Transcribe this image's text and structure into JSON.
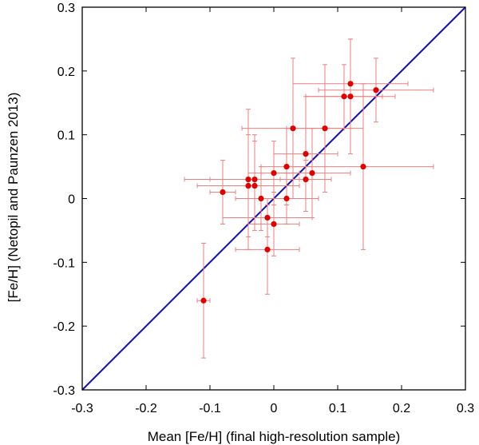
{
  "chart_data": {
    "type": "scatter",
    "xlabel": "Mean [Fe/H] (final high-resolution sample)",
    "ylabel": "[Fe/H] (Netopil and Paunzen 2013)",
    "xlim": [
      -0.3,
      0.3
    ],
    "ylim": [
      -0.3,
      0.3
    ],
    "xticks": [
      -0.3,
      -0.2,
      -0.1,
      0,
      0.1,
      0.2,
      0.3
    ],
    "yticks": [
      -0.3,
      -0.2,
      -0.1,
      0,
      0.1,
      0.2,
      0.3
    ],
    "xtick_labels": [
      "-0.3",
      "-0.2",
      "-0.1",
      "0",
      "0.1",
      "0.2",
      "0.3"
    ],
    "ytick_labels": [
      "-0.3",
      "-0.2",
      "-0.1",
      "0",
      "0.1",
      "0.2",
      "0.3"
    ],
    "grid": false,
    "reference_line": {
      "label": "one-to-one",
      "x": [
        -0.3,
        0.3
      ],
      "y": [
        -0.3,
        0.3
      ],
      "color": "#1010b8"
    },
    "marker_color": "#e00000",
    "errorbar_color": "#e88080",
    "points": [
      {
        "x": -0.11,
        "y": -0.16,
        "xerr": 0.01,
        "yerr": 0.09
      },
      {
        "x": -0.08,
        "y": 0.01,
        "xerr": 0.02,
        "yerr": 0.05
      },
      {
        "x": -0.04,
        "y": 0.03,
        "xerr": 0.1,
        "yerr": 0.11
      },
      {
        "x": -0.04,
        "y": 0.02,
        "xerr": 0.08,
        "yerr": 0.08
      },
      {
        "x": -0.03,
        "y": 0.03,
        "xerr": 0.07,
        "yerr": 0.07
      },
      {
        "x": -0.03,
        "y": 0.02,
        "xerr": 0.05,
        "yerr": 0.07
      },
      {
        "x": -0.02,
        "y": 0.0,
        "xerr": 0.04,
        "yerr": 0.05
      },
      {
        "x": -0.01,
        "y": -0.03,
        "xerr": 0.07,
        "yerr": 0.03
      },
      {
        "x": -0.01,
        "y": -0.08,
        "xerr": 0.05,
        "yerr": 0.07
      },
      {
        "x": 0.0,
        "y": -0.04,
        "xerr": 0.04,
        "yerr": 0.05
      },
      {
        "x": 0.0,
        "y": 0.04,
        "xerr": 0.04,
        "yerr": 0.05
      },
      {
        "x": 0.02,
        "y": 0.05,
        "xerr": 0.04,
        "yerr": 0.06
      },
      {
        "x": 0.02,
        "y": 0.0,
        "xerr": 0.05,
        "yerr": 0.04
      },
      {
        "x": 0.03,
        "y": 0.11,
        "xerr": 0.08,
        "yerr": 0.11
      },
      {
        "x": 0.05,
        "y": 0.03,
        "xerr": 0.04,
        "yerr": 0.03
      },
      {
        "x": 0.05,
        "y": 0.07,
        "xerr": 0.05,
        "yerr": 0.09
      },
      {
        "x": 0.06,
        "y": 0.04,
        "xerr": 0.06,
        "yerr": 0.07
      },
      {
        "x": 0.08,
        "y": 0.11,
        "xerr": 0.06,
        "yerr": 0.1
      },
      {
        "x": 0.11,
        "y": 0.16,
        "xerr": 0.06,
        "yerr": 0.05
      },
      {
        "x": 0.12,
        "y": 0.16,
        "xerr": 0.07,
        "yerr": 0.09
      },
      {
        "x": 0.12,
        "y": 0.18,
        "xerr": 0.09,
        "yerr": 0.07
      },
      {
        "x": 0.14,
        "y": 0.05,
        "xerr": 0.11,
        "yerr": 0.13
      },
      {
        "x": 0.16,
        "y": 0.17,
        "xerr": 0.09,
        "yerr": 0.05
      }
    ]
  }
}
